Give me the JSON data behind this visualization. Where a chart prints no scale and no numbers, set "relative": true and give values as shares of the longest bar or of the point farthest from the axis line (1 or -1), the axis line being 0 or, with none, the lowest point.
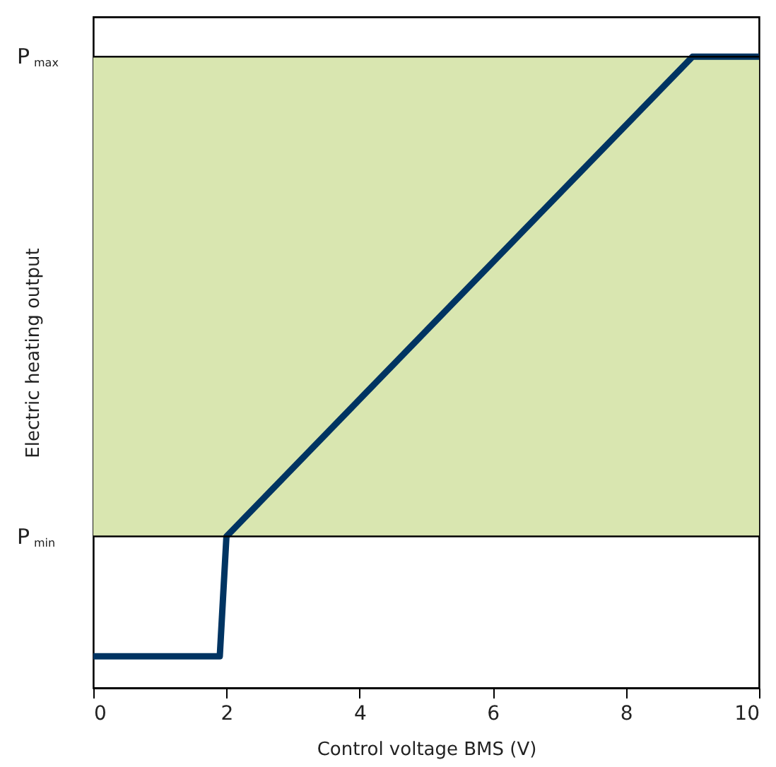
{
  "chart_data": {
    "type": "line",
    "xlabel": "Control voltage BMS (V)",
    "ylabel": "Electric heating output",
    "x": [
      0,
      1.9,
      2,
      9,
      10
    ],
    "relative": true,
    "series": [
      {
        "color": "#003462",
        "values": [
          0.05,
          0.05,
          0.24,
          1,
          1
        ]
      }
    ],
    "xlim": [
      0,
      10
    ],
    "xticks": [
      0,
      2,
      4,
      6,
      8,
      10
    ],
    "bands": [
      {
        "axis": "y",
        "from": 0.24,
        "to": 1,
        "color": "#d9e6b0"
      }
    ],
    "ref_lines": [
      {
        "axis": "y",
        "value": 0.24,
        "label": "P$_{min}$",
        "color": "#000000"
      },
      {
        "axis": "y",
        "value": 1,
        "label": "P$_{max}$",
        "color": "#000000"
      }
    ],
    "grid": false,
    "marker": "none",
    "line_style": "solid"
  }
}
